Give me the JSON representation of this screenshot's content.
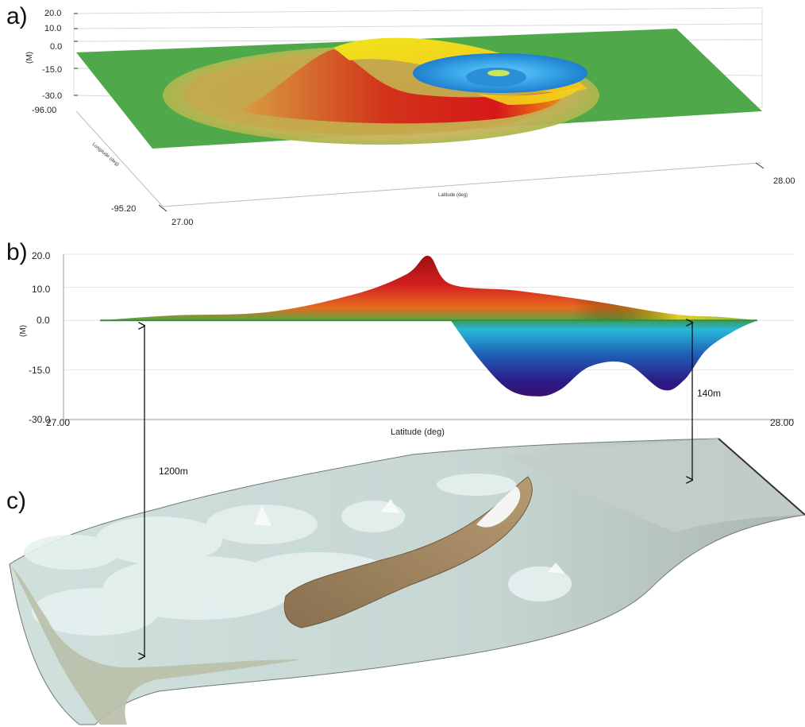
{
  "panels": {
    "a": "a)",
    "b": "b)",
    "c": "c)"
  },
  "chart_data": [
    {
      "type": "area",
      "panel": "a)",
      "view": "3d-surface",
      "zlabel": "(M)",
      "z_ticks": [
        "20.0",
        "10.0",
        "0.0",
        "-15.0",
        "-30.0"
      ],
      "zlim": [
        -30.0,
        20.0
      ],
      "xlabel": "Latitude (deg)",
      "x_ticks": [
        "27.00",
        "28.00"
      ],
      "xlim": [
        27.0,
        28.0
      ],
      "ylabel": "Longitude (deg)",
      "y_ticks": [
        "-96.00",
        "-95.20"
      ],
      "ylim": [
        -96.0,
        -95.2
      ],
      "colors": {
        "flat": "#4fa84a",
        "crest": "#d41818",
        "mid": "#f1e21a",
        "trough": "#3aa6e0"
      }
    },
    {
      "type": "area",
      "panel": "b)",
      "ylabel": "(M)",
      "y_ticks": [
        "20.0",
        "10.0",
        "0.0",
        "-15.0",
        "-30.0"
      ],
      "ylim": [
        -30,
        20
      ],
      "xlabel": "Latitude (deg)",
      "x_ticks": [
        "27.00",
        "28.00"
      ],
      "xlim": [
        27.0,
        28.0
      ],
      "crest_profile": {
        "x": [
          27.05,
          27.15,
          27.28,
          27.4,
          27.47,
          27.5,
          27.53,
          27.62,
          27.72,
          27.8,
          27.85,
          27.9,
          27.95
        ],
        "y": [
          0,
          1.5,
          2.5,
          8,
          14,
          19.5,
          11,
          9,
          6,
          3,
          1.5,
          1,
          0
        ]
      },
      "trough_profile": {
        "x": [
          27.53,
          27.57,
          27.61,
          27.65,
          27.68,
          27.72,
          27.77,
          27.82,
          27.85,
          27.88,
          27.92,
          27.95
        ],
        "y": [
          0,
          -12,
          -21,
          -23,
          -21,
          -14,
          -13,
          -21,
          -18,
          -9,
          -3,
          0
        ]
      },
      "colors": {
        "crest": "#c41a1a",
        "crest_edge": "#e7c21a",
        "flat": "#4b9e46",
        "trough_top": "#29b3d6",
        "trough_bottom": "#2c1a86"
      }
    },
    {
      "type": "area",
      "panel": "c)",
      "view": "3d-bathymetry",
      "annotations": [
        "1200m",
        "140m"
      ],
      "colors": {
        "seafloor": "#cfdcd8",
        "slide": "#9b7f5f",
        "edge": "#555555"
      }
    }
  ]
}
